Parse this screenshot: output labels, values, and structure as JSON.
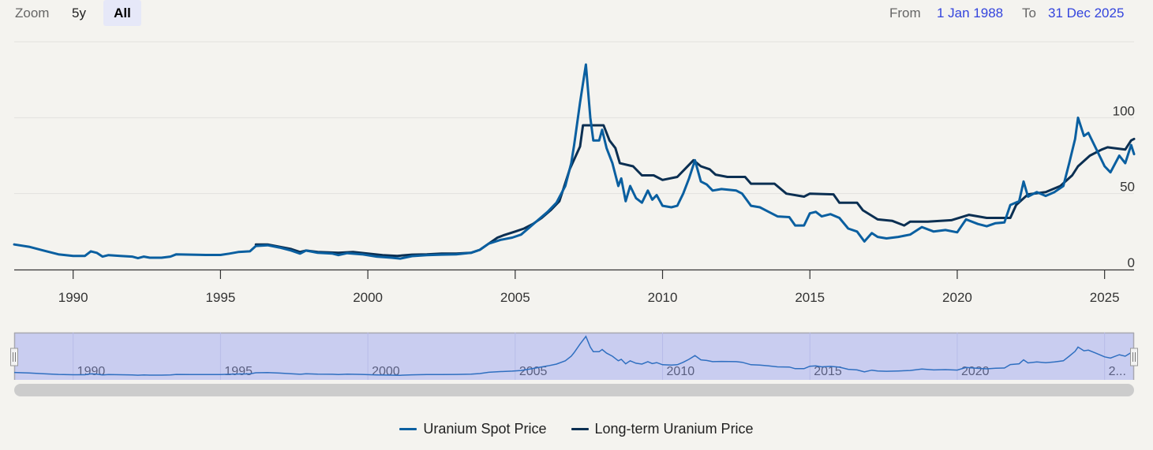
{
  "range_selector": {
    "zoom_label": "Zoom",
    "buttons": [
      {
        "label": "5y",
        "selected": false
      },
      {
        "label": "All",
        "selected": true
      }
    ],
    "from_label": "From",
    "from_value": "1 Jan 1988",
    "to_label": "To",
    "to_value": "31 Dec 2025"
  },
  "colors": {
    "spot": "#0a5fa0",
    "longterm": "#0b2f52",
    "background": "#f4f3ef",
    "navigator_fill": "#c9cdf0",
    "accent_link": "#3344dd"
  },
  "chart_data": {
    "type": "line",
    "title": "",
    "xlabel": "",
    "ylabel": "",
    "xlim": [
      1988.0,
      2026.0
    ],
    "ylim": [
      0,
      150
    ],
    "y_ticks": [
      0,
      50,
      100
    ],
    "x_ticks": [
      1990,
      1995,
      2000,
      2005,
      2010,
      2015,
      2020,
      2025
    ],
    "navigator_x_ticks": [
      "1990",
      "1995",
      "2000",
      "2005",
      "2010",
      "2015",
      "2020",
      "2..."
    ],
    "grid": true,
    "legend_position": "bottom-center",
    "series": [
      {
        "name": "Uranium Spot Price",
        "color_key": "spot",
        "points": [
          [
            1988.0,
            16.5
          ],
          [
            1988.5,
            15.0
          ],
          [
            1989.0,
            12.5
          ],
          [
            1989.5,
            10.0
          ],
          [
            1990.0,
            9.0
          ],
          [
            1990.4,
            9.0
          ],
          [
            1990.6,
            12.0
          ],
          [
            1990.8,
            11.0
          ],
          [
            1991.0,
            8.5
          ],
          [
            1991.2,
            9.5
          ],
          [
            1991.6,
            9.0
          ],
          [
            1992.0,
            8.5
          ],
          [
            1992.2,
            7.5
          ],
          [
            1992.4,
            8.5
          ],
          [
            1992.6,
            7.8
          ],
          [
            1993.0,
            7.8
          ],
          [
            1993.3,
            8.5
          ],
          [
            1993.5,
            10.0
          ],
          [
            1994.0,
            9.8
          ],
          [
            1994.5,
            9.6
          ],
          [
            1995.0,
            9.6
          ],
          [
            1995.3,
            10.5
          ],
          [
            1995.6,
            11.5
          ],
          [
            1996.0,
            12.0
          ],
          [
            1996.2,
            15.5
          ],
          [
            1996.6,
            16.0
          ],
          [
            1997.0,
            14.5
          ],
          [
            1997.4,
            12.5
          ],
          [
            1997.7,
            10.5
          ],
          [
            1997.9,
            12.5
          ],
          [
            1998.3,
            11.0
          ],
          [
            1998.8,
            10.5
          ],
          [
            1999.0,
            9.5
          ],
          [
            1999.3,
            10.8
          ],
          [
            1999.8,
            10.0
          ],
          [
            2000.3,
            8.5
          ],
          [
            2000.8,
            7.8
          ],
          [
            2001.1,
            7.2
          ],
          [
            2001.5,
            8.8
          ],
          [
            2002.0,
            9.5
          ],
          [
            2002.5,
            9.8
          ],
          [
            2003.0,
            10.0
          ],
          [
            2003.5,
            11.0
          ],
          [
            2003.8,
            13.0
          ],
          [
            2004.1,
            17.0
          ],
          [
            2004.5,
            19.5
          ],
          [
            2004.9,
            21.0
          ],
          [
            2005.2,
            23.0
          ],
          [
            2005.5,
            28.0
          ],
          [
            2005.8,
            33.0
          ],
          [
            2006.1,
            38.0
          ],
          [
            2006.4,
            44.0
          ],
          [
            2006.7,
            55.0
          ],
          [
            2006.9,
            70.0
          ],
          [
            2007.0,
            82.0
          ],
          [
            2007.2,
            110.0
          ],
          [
            2007.4,
            135.0
          ],
          [
            2007.55,
            100.0
          ],
          [
            2007.65,
            85.0
          ],
          [
            2007.85,
            85.0
          ],
          [
            2007.95,
            92.0
          ],
          [
            2008.1,
            80.0
          ],
          [
            2008.3,
            70.0
          ],
          [
            2008.5,
            55.0
          ],
          [
            2008.6,
            60.0
          ],
          [
            2008.75,
            45.0
          ],
          [
            2008.9,
            55.0
          ],
          [
            2009.1,
            47.0
          ],
          [
            2009.3,
            44.0
          ],
          [
            2009.5,
            52.0
          ],
          [
            2009.65,
            46.0
          ],
          [
            2009.8,
            49.0
          ],
          [
            2010.0,
            42.0
          ],
          [
            2010.3,
            41.0
          ],
          [
            2010.5,
            42.0
          ],
          [
            2010.7,
            50.0
          ],
          [
            2010.9,
            60.0
          ],
          [
            2011.1,
            72.0
          ],
          [
            2011.3,
            58.0
          ],
          [
            2011.5,
            56.0
          ],
          [
            2011.7,
            52.0
          ],
          [
            2012.0,
            53.0
          ],
          [
            2012.5,
            52.0
          ],
          [
            2012.7,
            50.0
          ],
          [
            2013.0,
            42.0
          ],
          [
            2013.3,
            41.0
          ],
          [
            2013.6,
            38.0
          ],
          [
            2013.9,
            35.0
          ],
          [
            2014.3,
            34.5
          ],
          [
            2014.5,
            29.0
          ],
          [
            2014.8,
            29.0
          ],
          [
            2015.0,
            37.0
          ],
          [
            2015.2,
            38.0
          ],
          [
            2015.4,
            35.0
          ],
          [
            2015.7,
            36.5
          ],
          [
            2016.0,
            34.0
          ],
          [
            2016.3,
            27.0
          ],
          [
            2016.6,
            25.0
          ],
          [
            2016.85,
            18.5
          ],
          [
            2017.1,
            24.0
          ],
          [
            2017.3,
            21.5
          ],
          [
            2017.6,
            20.5
          ],
          [
            2018.0,
            21.5
          ],
          [
            2018.4,
            23.0
          ],
          [
            2018.8,
            28.0
          ],
          [
            2019.2,
            25.0
          ],
          [
            2019.6,
            26.0
          ],
          [
            2020.0,
            24.5
          ],
          [
            2020.3,
            33.0
          ],
          [
            2020.7,
            30.0
          ],
          [
            2021.0,
            28.5
          ],
          [
            2021.3,
            30.5
          ],
          [
            2021.6,
            31.0
          ],
          [
            2021.8,
            42.5
          ],
          [
            2022.1,
            45.0
          ],
          [
            2022.25,
            58.0
          ],
          [
            2022.4,
            48.0
          ],
          [
            2022.7,
            51.0
          ],
          [
            2023.0,
            48.5
          ],
          [
            2023.3,
            51.0
          ],
          [
            2023.6,
            55.0
          ],
          [
            2023.8,
            70.0
          ],
          [
            2024.0,
            86.0
          ],
          [
            2024.1,
            100.0
          ],
          [
            2024.3,
            88.0
          ],
          [
            2024.45,
            90.0
          ],
          [
            2024.7,
            80.0
          ],
          [
            2025.0,
            68.0
          ],
          [
            2025.2,
            64.0
          ],
          [
            2025.5,
            75.0
          ],
          [
            2025.7,
            70.0
          ],
          [
            2025.9,
            82.0
          ],
          [
            2026.0,
            76.0
          ]
        ]
      },
      {
        "name": "Long-term Uranium Price",
        "color_key": "longterm",
        "points": [
          [
            1996.2,
            16.5
          ],
          [
            1996.6,
            16.5
          ],
          [
            1997.0,
            15.0
          ],
          [
            1997.4,
            13.5
          ],
          [
            1997.7,
            11.5
          ],
          [
            1997.9,
            12.5
          ],
          [
            1998.3,
            11.5
          ],
          [
            1999.0,
            11.0
          ],
          [
            1999.5,
            11.5
          ],
          [
            2000.0,
            10.5
          ],
          [
            2000.5,
            9.5
          ],
          [
            2001.0,
            9.0
          ],
          [
            2001.5,
            9.8
          ],
          [
            2002.0,
            10.0
          ],
          [
            2002.5,
            10.5
          ],
          [
            2003.0,
            10.5
          ],
          [
            2003.5,
            11.0
          ],
          [
            2003.8,
            13.0
          ],
          [
            2004.1,
            17.0
          ],
          [
            2004.4,
            21.0
          ],
          [
            2004.6,
            22.5
          ],
          [
            2005.0,
            25.0
          ],
          [
            2005.3,
            27.0
          ],
          [
            2005.6,
            30.0
          ],
          [
            2005.9,
            34.0
          ],
          [
            2006.2,
            39.0
          ],
          [
            2006.5,
            45.0
          ],
          [
            2006.75,
            60.0
          ],
          [
            2006.85,
            66.0
          ],
          [
            2007.2,
            81.0
          ],
          [
            2007.3,
            95.0
          ],
          [
            2008.0,
            95.0
          ],
          [
            2008.2,
            85.0
          ],
          [
            2008.4,
            80.0
          ],
          [
            2008.55,
            70.0
          ],
          [
            2009.0,
            68.0
          ],
          [
            2009.3,
            62.0
          ],
          [
            2009.7,
            62.0
          ],
          [
            2010.0,
            59.0
          ],
          [
            2010.5,
            61.0
          ],
          [
            2010.8,
            67.0
          ],
          [
            2011.05,
            72.0
          ],
          [
            2011.3,
            68.0
          ],
          [
            2011.6,
            66.0
          ],
          [
            2011.8,
            62.5
          ],
          [
            2012.2,
            61.0
          ],
          [
            2012.8,
            61.0
          ],
          [
            2013.0,
            56.5
          ],
          [
            2013.8,
            56.5
          ],
          [
            2014.2,
            50.0
          ],
          [
            2014.8,
            48.0
          ],
          [
            2015.0,
            50.0
          ],
          [
            2015.8,
            49.5
          ],
          [
            2016.0,
            44.0
          ],
          [
            2016.6,
            44.0
          ],
          [
            2016.8,
            39.0
          ],
          [
            2017.3,
            33.0
          ],
          [
            2017.8,
            32.0
          ],
          [
            2018.2,
            29.0
          ],
          [
            2018.4,
            31.5
          ],
          [
            2019.0,
            31.5
          ],
          [
            2019.8,
            32.5
          ],
          [
            2020.4,
            36.0
          ],
          [
            2021.0,
            34.0
          ],
          [
            2021.8,
            34.0
          ],
          [
            2022.0,
            42.5
          ],
          [
            2022.4,
            49.5
          ],
          [
            2023.0,
            51.0
          ],
          [
            2023.5,
            55.0
          ],
          [
            2023.9,
            62.0
          ],
          [
            2024.1,
            68.0
          ],
          [
            2024.5,
            75.0
          ],
          [
            2024.9,
            79.0
          ],
          [
            2025.1,
            80.5
          ],
          [
            2025.3,
            80.0
          ],
          [
            2025.7,
            79.0
          ],
          [
            2025.9,
            85.0
          ],
          [
            2026.0,
            86.0
          ]
        ]
      }
    ]
  }
}
